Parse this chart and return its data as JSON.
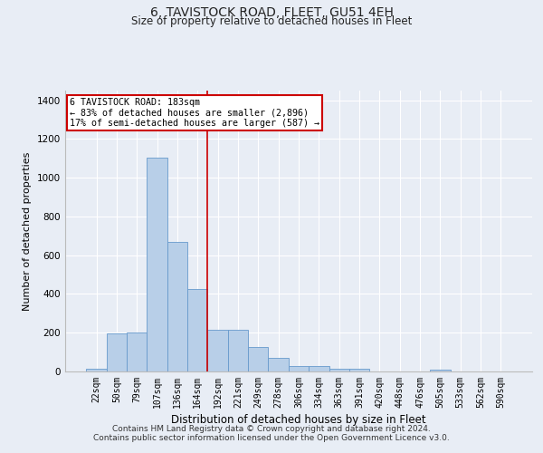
{
  "title_line1": "6, TAVISTOCK ROAD, FLEET, GU51 4EH",
  "title_line2": "Size of property relative to detached houses in Fleet",
  "xlabel": "Distribution of detached houses by size in Fleet",
  "ylabel": "Number of detached properties",
  "categories": [
    "22sqm",
    "50sqm",
    "79sqm",
    "107sqm",
    "136sqm",
    "164sqm",
    "192sqm",
    "221sqm",
    "249sqm",
    "278sqm",
    "306sqm",
    "334sqm",
    "363sqm",
    "391sqm",
    "420sqm",
    "448sqm",
    "476sqm",
    "505sqm",
    "533sqm",
    "562sqm",
    "590sqm"
  ],
  "values": [
    15,
    195,
    200,
    1105,
    670,
    425,
    215,
    215,
    125,
    70,
    30,
    28,
    15,
    12,
    0,
    0,
    0,
    10,
    0,
    0,
    0
  ],
  "bar_color": "#b8cfe8",
  "bar_edge_color": "#6699cc",
  "vline_color": "#cc0000",
  "annotation_text": "6 TAVISTOCK ROAD: 183sqm\n← 83% of detached houses are smaller (2,896)\n17% of semi-detached houses are larger (587) →",
  "annotation_box_color": "#ffffff",
  "annotation_box_edge": "#cc0000",
  "ylim": [
    0,
    1450
  ],
  "yticks": [
    0,
    200,
    400,
    600,
    800,
    1000,
    1200,
    1400
  ],
  "bg_color": "#e8edf5",
  "title_fontsize": 10,
  "subtitle_fontsize": 8.5,
  "footer_line1": "Contains HM Land Registry data © Crown copyright and database right 2024.",
  "footer_line2": "Contains public sector information licensed under the Open Government Licence v3.0."
}
